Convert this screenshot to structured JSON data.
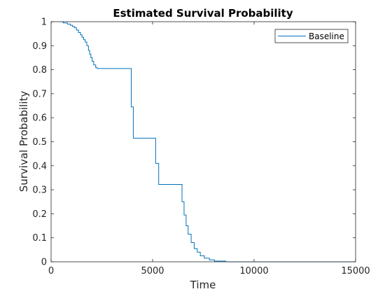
{
  "chart_data": {
    "type": "line",
    "title": "Estimated Survival Probability",
    "xlabel": "Time",
    "ylabel": "Survival Probability",
    "xlim": [
      0,
      15000
    ],
    "ylim": [
      0,
      1
    ],
    "xticks": [
      0,
      5000,
      10000,
      15000
    ],
    "xtick_labels": [
      "0",
      "5000",
      "10000",
      "15000"
    ],
    "yticks": [
      0,
      0.1,
      0.2,
      0.3,
      0.4,
      0.5,
      0.6,
      0.7,
      0.8,
      0.9,
      1
    ],
    "ytick_labels": [
      "0",
      "0.1",
      "0.2",
      "0.3",
      "0.4",
      "0.5",
      "0.6",
      "0.7",
      "0.8",
      "0.9",
      "1"
    ],
    "grid": false,
    "legend_position": "top-right",
    "series": [
      {
        "name": "Baseline",
        "color": "#0072BD",
        "step": true,
        "x": [
          480,
          600,
          800,
          950,
          1050,
          1150,
          1250,
          1350,
          1450,
          1520,
          1600,
          1680,
          1760,
          1840,
          1900,
          1960,
          2020,
          2100,
          2200,
          2280,
          3950,
          4050,
          5150,
          5300,
          6450,
          6550,
          6650,
          6750,
          6900,
          7050,
          7200,
          7350,
          7550,
          7800,
          8050,
          8600,
          15000
        ],
        "y": [
          1.0,
          0.995,
          0.99,
          0.985,
          0.98,
          0.975,
          0.965,
          0.955,
          0.945,
          0.935,
          0.925,
          0.915,
          0.9,
          0.88,
          0.865,
          0.85,
          0.835,
          0.82,
          0.808,
          0.805,
          0.645,
          0.515,
          0.41,
          0.322,
          0.25,
          0.195,
          0.15,
          0.115,
          0.08,
          0.055,
          0.04,
          0.025,
          0.015,
          0.008,
          0.003,
          0.0,
          0.0
        ]
      }
    ]
  }
}
